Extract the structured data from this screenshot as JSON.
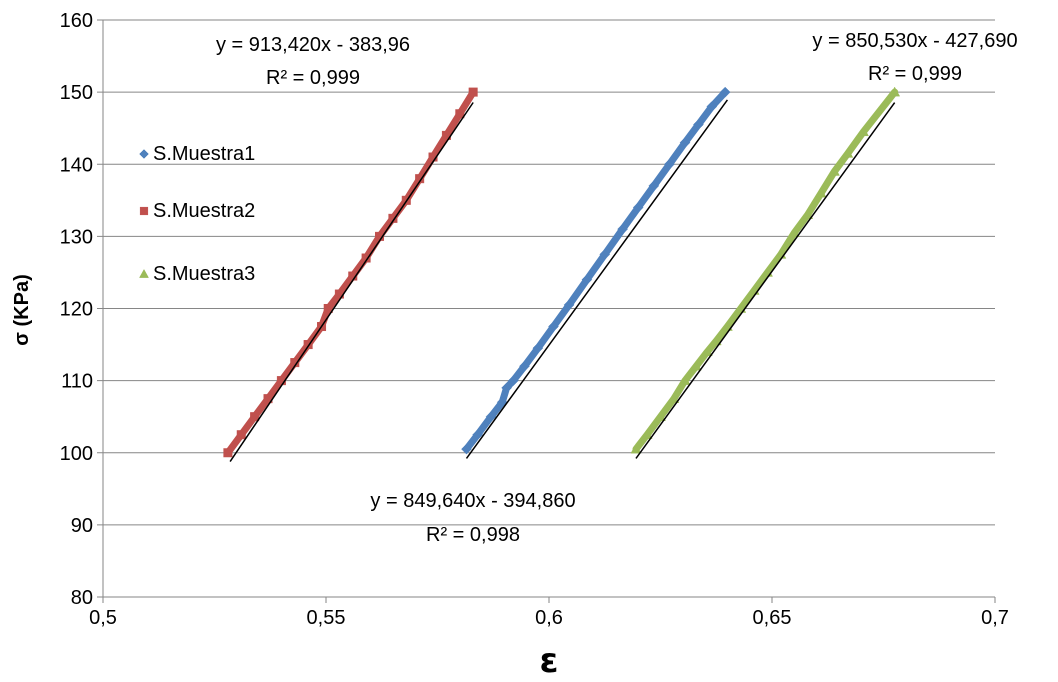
{
  "chart_data": {
    "type": "scatter",
    "xlabel": "ε",
    "ylabel": "σ (KPa)",
    "xlim": [
      0.5,
      0.7
    ],
    "ylim": [
      80,
      160
    ],
    "x_ticks": [
      "0,5",
      "0,55",
      "0,6",
      "0,65",
      "0,7"
    ],
    "x_tick_values": [
      0.5,
      0.55,
      0.6,
      0.65,
      0.7
    ],
    "y_ticks": [
      "80",
      "90",
      "100",
      "110",
      "120",
      "130",
      "140",
      "150",
      "160"
    ],
    "y_tick_values": [
      80,
      90,
      100,
      110,
      120,
      130,
      140,
      150,
      160
    ],
    "grid": "horizontal",
    "legend_position": "left",
    "series": [
      {
        "name": "S.Muestra1",
        "color": "#4f81bd",
        "marker": "diamond",
        "x": [
          0.5815,
          0.584,
          0.587,
          0.5895,
          0.5905,
          0.592,
          0.5945,
          0.5975,
          0.601,
          0.6045,
          0.6085,
          0.6125,
          0.6165,
          0.62,
          0.6235,
          0.627,
          0.6305,
          0.6335,
          0.6365,
          0.6395
        ],
        "y": [
          100.5,
          102.5,
          105,
          107,
          109,
          110,
          112,
          114.5,
          117.5,
          120.5,
          124,
          127.5,
          131,
          134,
          137,
          140,
          143,
          145.5,
          148,
          150
        ]
      },
      {
        "name": "S.Muestra2",
        "color": "#c0504d",
        "marker": "square",
        "x": [
          0.528,
          0.531,
          0.534,
          0.537,
          0.54,
          0.543,
          0.546,
          0.549,
          0.5505,
          0.553,
          0.556,
          0.559,
          0.562,
          0.565,
          0.568,
          0.571,
          0.574,
          0.577,
          0.58,
          0.583
        ],
        "y": [
          100,
          102.5,
          105,
          107.5,
          110,
          112.5,
          115,
          117.5,
          120,
          122,
          124.5,
          127,
          130,
          132.5,
          135,
          138,
          141,
          144,
          147,
          150
        ]
      },
      {
        "name": "S.Muestra3",
        "color": "#9bbb59",
        "marker": "triangle",
        "x": [
          0.6195,
          0.622,
          0.625,
          0.628,
          0.6305,
          0.633,
          0.6355,
          0.6375,
          0.64,
          0.643,
          0.646,
          0.649,
          0.652,
          0.655,
          0.658,
          0.661,
          0.664,
          0.667,
          0.6705,
          0.6775
        ],
        "y": [
          100.5,
          102.5,
          105,
          107.5,
          110,
          112,
          114,
          115.5,
          117.5,
          120,
          122.5,
          125,
          127.5,
          130.5,
          133,
          136,
          139,
          141.5,
          144.5,
          150
        ]
      }
    ],
    "trendlines": [
      {
        "series": "S.Muestra1",
        "slope": 849.64,
        "intercept": -394.86,
        "x_range": [
          0.5815,
          0.64
        ]
      },
      {
        "series": "S.Muestra2",
        "slope": 913.42,
        "intercept": -383.96,
        "x_range": [
          0.5285,
          0.583
        ]
      },
      {
        "series": "S.Muestra3",
        "slope": 850.53,
        "intercept": -427.69,
        "x_range": [
          0.6195,
          0.6775
        ]
      }
    ],
    "annotations": {
      "eq1": "y = 913,420x - 383,96",
      "r1": "R² = 0,999",
      "eq2": "y = 849,640x - 394,860",
      "r2": "R² = 0,998",
      "eq3": "y = 850,530x - 427,690",
      "r3": "R² = 0,999"
    }
  }
}
